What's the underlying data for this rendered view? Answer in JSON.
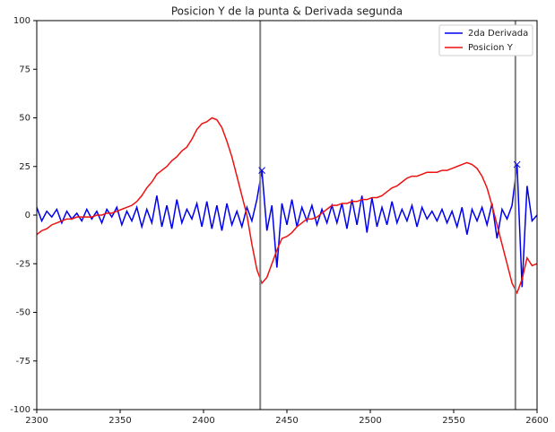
{
  "chart_data": {
    "type": "line",
    "title": "Posicion Y de la punta & Derivada segunda",
    "x": [
      2300,
      2303,
      2306,
      2309,
      2312,
      2315,
      2318,
      2321,
      2324,
      2327,
      2330,
      2333,
      2336,
      2339,
      2342,
      2345,
      2348,
      2351,
      2354,
      2357,
      2360,
      2363,
      2366,
      2369,
      2372,
      2375,
      2378,
      2381,
      2384,
      2387,
      2390,
      2393,
      2396,
      2399,
      2402,
      2405,
      2408,
      2411,
      2414,
      2417,
      2420,
      2423,
      2426,
      2429,
      2432,
      2435,
      2438,
      2441,
      2444,
      2447,
      2450,
      2453,
      2456,
      2459,
      2462,
      2465,
      2468,
      2471,
      2474,
      2477,
      2480,
      2483,
      2486,
      2489,
      2492,
      2495,
      2498,
      2501,
      2504,
      2507,
      2510,
      2513,
      2516,
      2519,
      2522,
      2525,
      2528,
      2531,
      2534,
      2537,
      2540,
      2543,
      2546,
      2549,
      2552,
      2555,
      2558,
      2561,
      2564,
      2567,
      2570,
      2573,
      2576,
      2579,
      2582,
      2585,
      2588,
      2591,
      2594,
      2597,
      2600
    ],
    "series": [
      {
        "name": "2da Derivada",
        "color": "#0000ee",
        "values": [
          4,
          -3,
          2,
          -1,
          3,
          -4,
          2,
          -2,
          1,
          -3,
          3,
          -2,
          2,
          -4,
          3,
          -1,
          4,
          -5,
          2,
          -3,
          4,
          -6,
          3,
          -4,
          10,
          -6,
          5,
          -7,
          8,
          -4,
          3,
          -2,
          6,
          -6,
          7,
          -7,
          5,
          -8,
          6,
          -5,
          2,
          -6,
          4,
          -3,
          8,
          23,
          -8,
          5,
          -27,
          6,
          -5,
          8,
          -6,
          4,
          -3,
          5,
          -5,
          3,
          -4,
          5,
          -4,
          6,
          -7,
          8,
          -5,
          10,
          -9,
          9,
          -6,
          4,
          -5,
          7,
          -4,
          3,
          -3,
          5,
          -6,
          4,
          -2,
          2,
          -3,
          3,
          -4,
          2,
          -6,
          4,
          -10,
          3,
          -3,
          4,
          -5,
          6,
          -12,
          3,
          -2,
          5,
          26,
          -37,
          15,
          -3,
          0
        ]
      },
      {
        "name": "Posicion Y",
        "color": "#ee1111",
        "values": [
          -10,
          -8,
          -7,
          -5,
          -4,
          -3,
          -2,
          -2,
          -1,
          -1,
          -1,
          -1,
          0,
          0,
          1,
          1,
          2,
          3,
          4,
          5,
          7,
          10,
          14,
          17,
          21,
          23,
          25,
          28,
          30,
          33,
          35,
          39,
          44,
          47,
          48,
          50,
          49,
          45,
          38,
          30,
          20,
          10,
          0,
          -15,
          -28,
          -35,
          -32,
          -25,
          -18,
          -12,
          -11,
          -9,
          -6,
          -4,
          -2,
          -2,
          -1,
          1,
          3,
          5,
          5,
          6,
          6,
          7,
          7,
          8,
          8,
          9,
          9,
          10,
          12,
          14,
          15,
          17,
          19,
          20,
          20,
          21,
          22,
          22,
          22,
          23,
          23,
          24,
          25,
          26,
          27,
          26,
          24,
          20,
          14,
          5,
          -5,
          -15,
          -25,
          -35,
          -40,
          -33,
          -22,
          -26,
          -25
        ]
      }
    ],
    "markers": {
      "x": [
        2435,
        2588
      ],
      "y": [
        23,
        26
      ],
      "color": "#0000ee"
    },
    "vlines": [
      2434,
      2587
    ],
    "vline_color": "#808080",
    "xlim": [
      2300,
      2600
    ],
    "xticks": [
      2300,
      2350,
      2400,
      2450,
      2500,
      2550,
      2600
    ],
    "ylim": [
      -100,
      100
    ],
    "yticks": [
      -100,
      -75,
      -50,
      -25,
      0,
      25,
      50,
      75,
      100
    ],
    "grid": false,
    "legend": "upper right"
  }
}
